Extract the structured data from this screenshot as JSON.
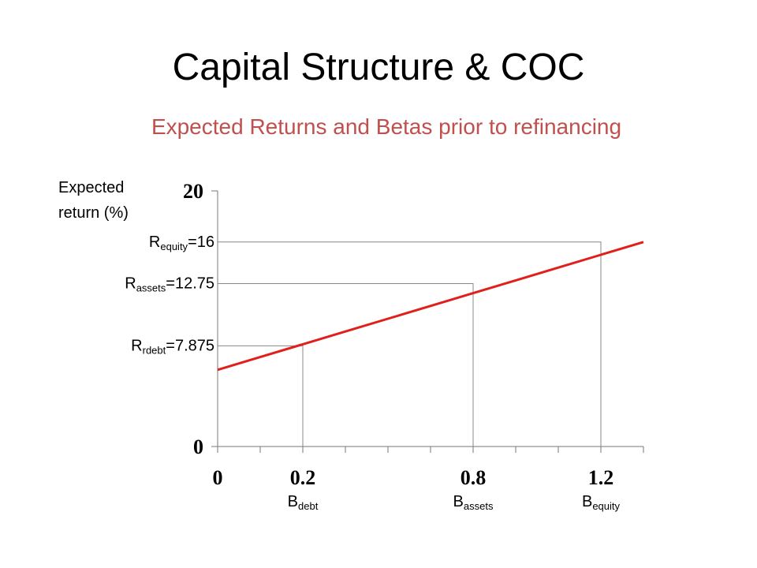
{
  "chart_data": {
    "type": "line",
    "title": "Capital Structure & COC",
    "subtitle": "Expected Returns and Betas prior to refinancing",
    "y_label": "Expected return (%)",
    "categories": [
      "0",
      null,
      "0.2",
      null,
      null,
      null,
      "0.8",
      null,
      null,
      "1.2",
      null
    ],
    "series": [
      {
        "color": "#e0201b",
        "values": [
          6,
          7,
          8,
          9,
          10,
          11,
          12,
          13,
          14,
          15,
          16
        ]
      }
    ],
    "ylim": [
      0,
      20
    ],
    "yticks": [
      0,
      20
    ],
    "reference_lines": [
      {
        "r": "R",
        "r_sub": "rdebt",
        "value_label": "=7.875",
        "value": 7.875,
        "at": "0.2",
        "beta": "B",
        "beta_sub": "debt"
      },
      {
        "r": "R",
        "r_sub": "assets",
        "value_label": "=12.75",
        "value": 12.75,
        "at": "0.8",
        "beta": "B",
        "beta_sub": "assets"
      },
      {
        "r": "R",
        "r_sub": "equity",
        "value_label": "=16",
        "value": 16,
        "at": "1.2",
        "beta": "B",
        "beta_sub": "equity"
      }
    ]
  }
}
